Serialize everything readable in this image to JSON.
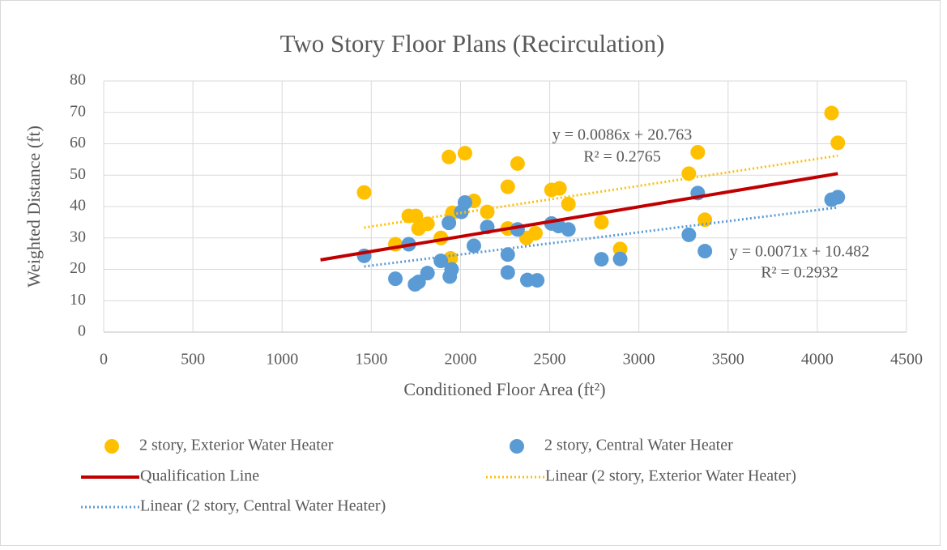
{
  "chart_data": {
    "type": "scatter",
    "title": "Two Story Floor Plans (Recirculation)",
    "x_label": "Conditioned Floor Area (ft²)",
    "y_label": "Weighted Distance (ft)",
    "xlim": [
      0,
      4500
    ],
    "ylim": [
      0,
      80
    ],
    "xticks": [
      0,
      500,
      1000,
      1500,
      2000,
      2500,
      3000,
      3500,
      4000,
      4500
    ],
    "yticks": [
      0,
      10,
      20,
      30,
      40,
      50,
      60,
      70,
      80
    ],
    "grid": true,
    "legend": "bottom",
    "series": [
      {
        "name": "2 story, Exterior Water Heater",
        "kind": "scatter",
        "color": "#ffc000",
        "x": [
          1460,
          1635,
          1710,
          1750,
          1765,
          1815,
          1890,
          1935,
          1955,
          1945,
          2025,
          2075,
          2150,
          2265,
          2265,
          2320,
          2370,
          2420,
          2510,
          2555,
          2605,
          2790,
          2895,
          3280,
          3330,
          3370,
          4080,
          4115
        ],
        "values": [
          44.5,
          28,
          37,
          37,
          33,
          34.5,
          30,
          55.8,
          38,
          23.5,
          57,
          41.8,
          38.3,
          46.3,
          33,
          53.7,
          30,
          31.5,
          45.3,
          45.8,
          40.8,
          35,
          26.5,
          50.5,
          57.3,
          35.8,
          69.8,
          60.3
        ]
      },
      {
        "name": "2 story, Central Water Heater",
        "kind": "scatter",
        "color": "#5b9bd5",
        "x": [
          1460,
          1635,
          1710,
          1745,
          1765,
          1815,
          1890,
          1935,
          1950,
          1940,
          2005,
          2025,
          2075,
          2150,
          2265,
          2265,
          2320,
          2375,
          2430,
          2510,
          2550,
          2605,
          2790,
          2895,
          3280,
          3330,
          3370,
          4080,
          4115
        ],
        "values": [
          24.3,
          17,
          28,
          15.2,
          16,
          18.8,
          22.7,
          34.8,
          20,
          17.7,
          38.3,
          41.3,
          27.5,
          33.5,
          24.7,
          19,
          32.7,
          16.6,
          16.5,
          34.6,
          33.8,
          32.7,
          23.2,
          23.3,
          31,
          44.3,
          25.8,
          42.2,
          43
        ]
      },
      {
        "name": "Qualification Line",
        "kind": "line",
        "dash": "solid",
        "color": "#c00000",
        "x": [
          1215,
          4115
        ],
        "values": [
          23,
          50.5
        ]
      },
      {
        "name": "Linear (2 story, Exterior Water Heater)",
        "kind": "line",
        "dash": "dotted",
        "color": "#ffc000",
        "x": [
          1460,
          4115
        ],
        "values": [
          33.3,
          56.2
        ]
      },
      {
        "name": "Linear (2 story, Central Water Heater)",
        "kind": "line",
        "dash": "dotted",
        "color": "#5b9bd5",
        "x": [
          1460,
          4115
        ],
        "values": [
          20.9,
          39.7
        ]
      }
    ],
    "annotations": [
      "y = 0.0086x + 20.763",
      "R² = 0.2765",
      "y = 0.0071x + 10.482",
      "R² = 0.2932"
    ]
  }
}
